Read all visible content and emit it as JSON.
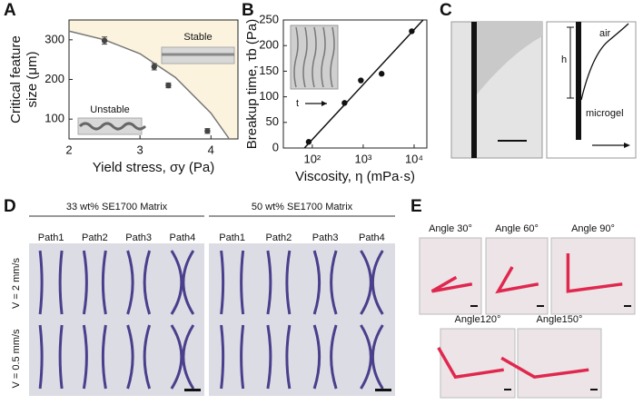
{
  "chart_data": [
    {
      "type": "scatter",
      "label": "A",
      "xlabel": "Yield stress, σy (Pa)",
      "ylabel": [
        "Critical feature",
        "size (μm)"
      ],
      "xlim": [
        2,
        4.38
      ],
      "ylim": [
        50,
        350
      ],
      "xticks": [
        2,
        3,
        4
      ],
      "yticks": [
        100,
        200,
        300
      ],
      "x": [
        2.5,
        3.2,
        3.4,
        3.95
      ],
      "series": [
        {
          "color": "#444444",
          "values": [
            298,
            232,
            185,
            70
          ],
          "errors": [
            9,
            8,
            6,
            6
          ]
        }
      ],
      "curve": {
        "color": "#777777",
        "x": [
          2,
          2.5,
          3,
          3.5,
          4,
          4.25
        ],
        "y": [
          322,
          300,
          265,
          205,
          115,
          52
        ]
      },
      "shade": "#fbf3de",
      "annotations": [
        "Stable",
        "Unstable"
      ]
    },
    {
      "type": "scatter",
      "label": "B",
      "xscale": "log",
      "xlabel": "Viscosity, η (mPa·s)",
      "ylabel": [
        "Breakup time, τb (Pa)"
      ],
      "xlim": [
        27,
        17800
      ],
      "ylim": [
        0,
        250
      ],
      "xticks": [
        {
          "value": 100,
          "label": "10²"
        },
        {
          "value": 1000,
          "label": "10³"
        },
        {
          "value": 10000,
          "label": "10⁴"
        }
      ],
      "yticks": [
        0,
        50,
        100,
        150,
        200,
        250
      ],
      "x": [
        85,
        430,
        900,
        2300,
        9000
      ],
      "series": [
        {
          "color": "#111111",
          "values": [
            12,
            88,
            132,
            145,
            228
          ]
        }
      ],
      "curve": {
        "color": "#111111",
        "x": [
          70,
          15000
        ],
        "y": [
          0,
          250
        ]
      },
      "annotations": [
        "t"
      ]
    }
  ],
  "panels": {
    "C": {
      "label": "C",
      "texts": [
        "air",
        "h",
        "microgel"
      ]
    },
    "D": {
      "label": "D",
      "groups": [
        {
          "title": "33 wt% SE1700 Matrix",
          "paths": [
            "Path1",
            "Path2",
            "Path3",
            "Path4"
          ]
        },
        {
          "title": "50 wt% SE1700 Matrix",
          "paths": [
            "Path1",
            "Path2",
            "Path3",
            "Path4"
          ]
        }
      ],
      "rows": [
        "V = 2 mm/s",
        "V = 0.5 mm/s"
      ]
    },
    "E": {
      "label": "E",
      "angles": [
        "Angle 30°",
        "Angle 60°",
        "Angle 90°",
        "Angle120°",
        "Angle150°"
      ]
    }
  }
}
